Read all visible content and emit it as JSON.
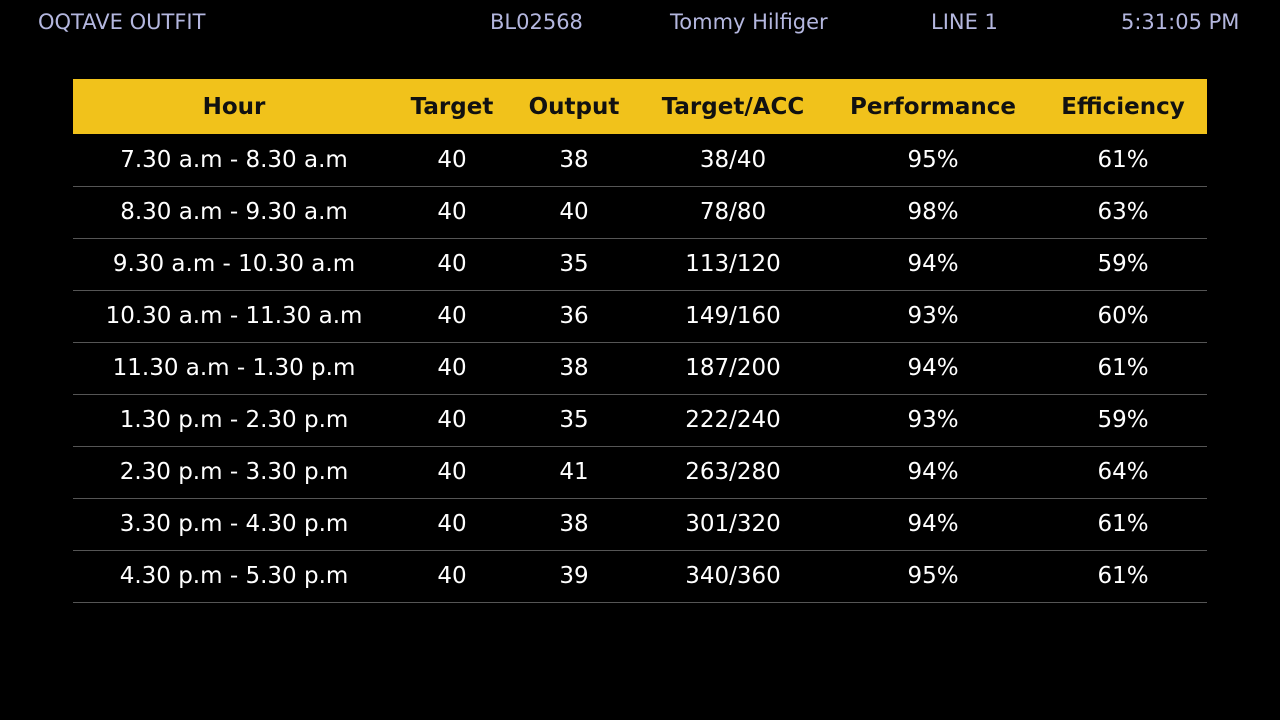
{
  "header": {
    "company": "OQTAVE OUTFIT",
    "style_no": "BL02568",
    "buyer": "Tommy Hilfiger",
    "line": "LINE 1",
    "time": "5:31:05 PM"
  },
  "table": {
    "columns": {
      "hour": "Hour",
      "target": "Target",
      "output": "Output",
      "acc": "Target/ACC",
      "performance": "Performance",
      "efficiency": "Efficiency"
    },
    "rows": [
      {
        "hour": "7.30 a.m - 8.30 a.m",
        "target": "40",
        "output": "38",
        "acc": "38/40",
        "performance": "95%",
        "efficiency": "61%"
      },
      {
        "hour": "8.30 a.m - 9.30 a.m",
        "target": "40",
        "output": "40",
        "acc": "78/80",
        "performance": "98%",
        "efficiency": "63%"
      },
      {
        "hour": "9.30 a.m - 10.30 a.m",
        "target": "40",
        "output": "35",
        "acc": "113/120",
        "performance": "94%",
        "efficiency": "59%"
      },
      {
        "hour": "10.30 a.m - 11.30 a.m",
        "target": "40",
        "output": "36",
        "acc": "149/160",
        "performance": "93%",
        "efficiency": "60%"
      },
      {
        "hour": "11.30 a.m - 1.30 p.m",
        "target": "40",
        "output": "38",
        "acc": "187/200",
        "performance": "94%",
        "efficiency": "61%"
      },
      {
        "hour": "1.30 p.m - 2.30 p.m",
        "target": "40",
        "output": "35",
        "acc": "222/240",
        "performance": "93%",
        "efficiency": "59%"
      },
      {
        "hour": "2.30 p.m - 3.30 p.m",
        "target": "40",
        "output": "41",
        "acc": "263/280",
        "performance": "94%",
        "efficiency": "64%"
      },
      {
        "hour": "3.30 p.m - 4.30 p.m",
        "target": "40",
        "output": "38",
        "acc": "301/320",
        "performance": "94%",
        "efficiency": "61%"
      },
      {
        "hour": "4.30 p.m - 5.30 p.m",
        "target": "40",
        "output": "39",
        "acc": "340/360",
        "performance": "95%",
        "efficiency": "61%"
      }
    ]
  },
  "colors": {
    "background": "#000000",
    "header_band": "#f1c21b",
    "top_text": "#b4b7df",
    "row_text": "#ffffff",
    "row_divider": "#555555"
  }
}
